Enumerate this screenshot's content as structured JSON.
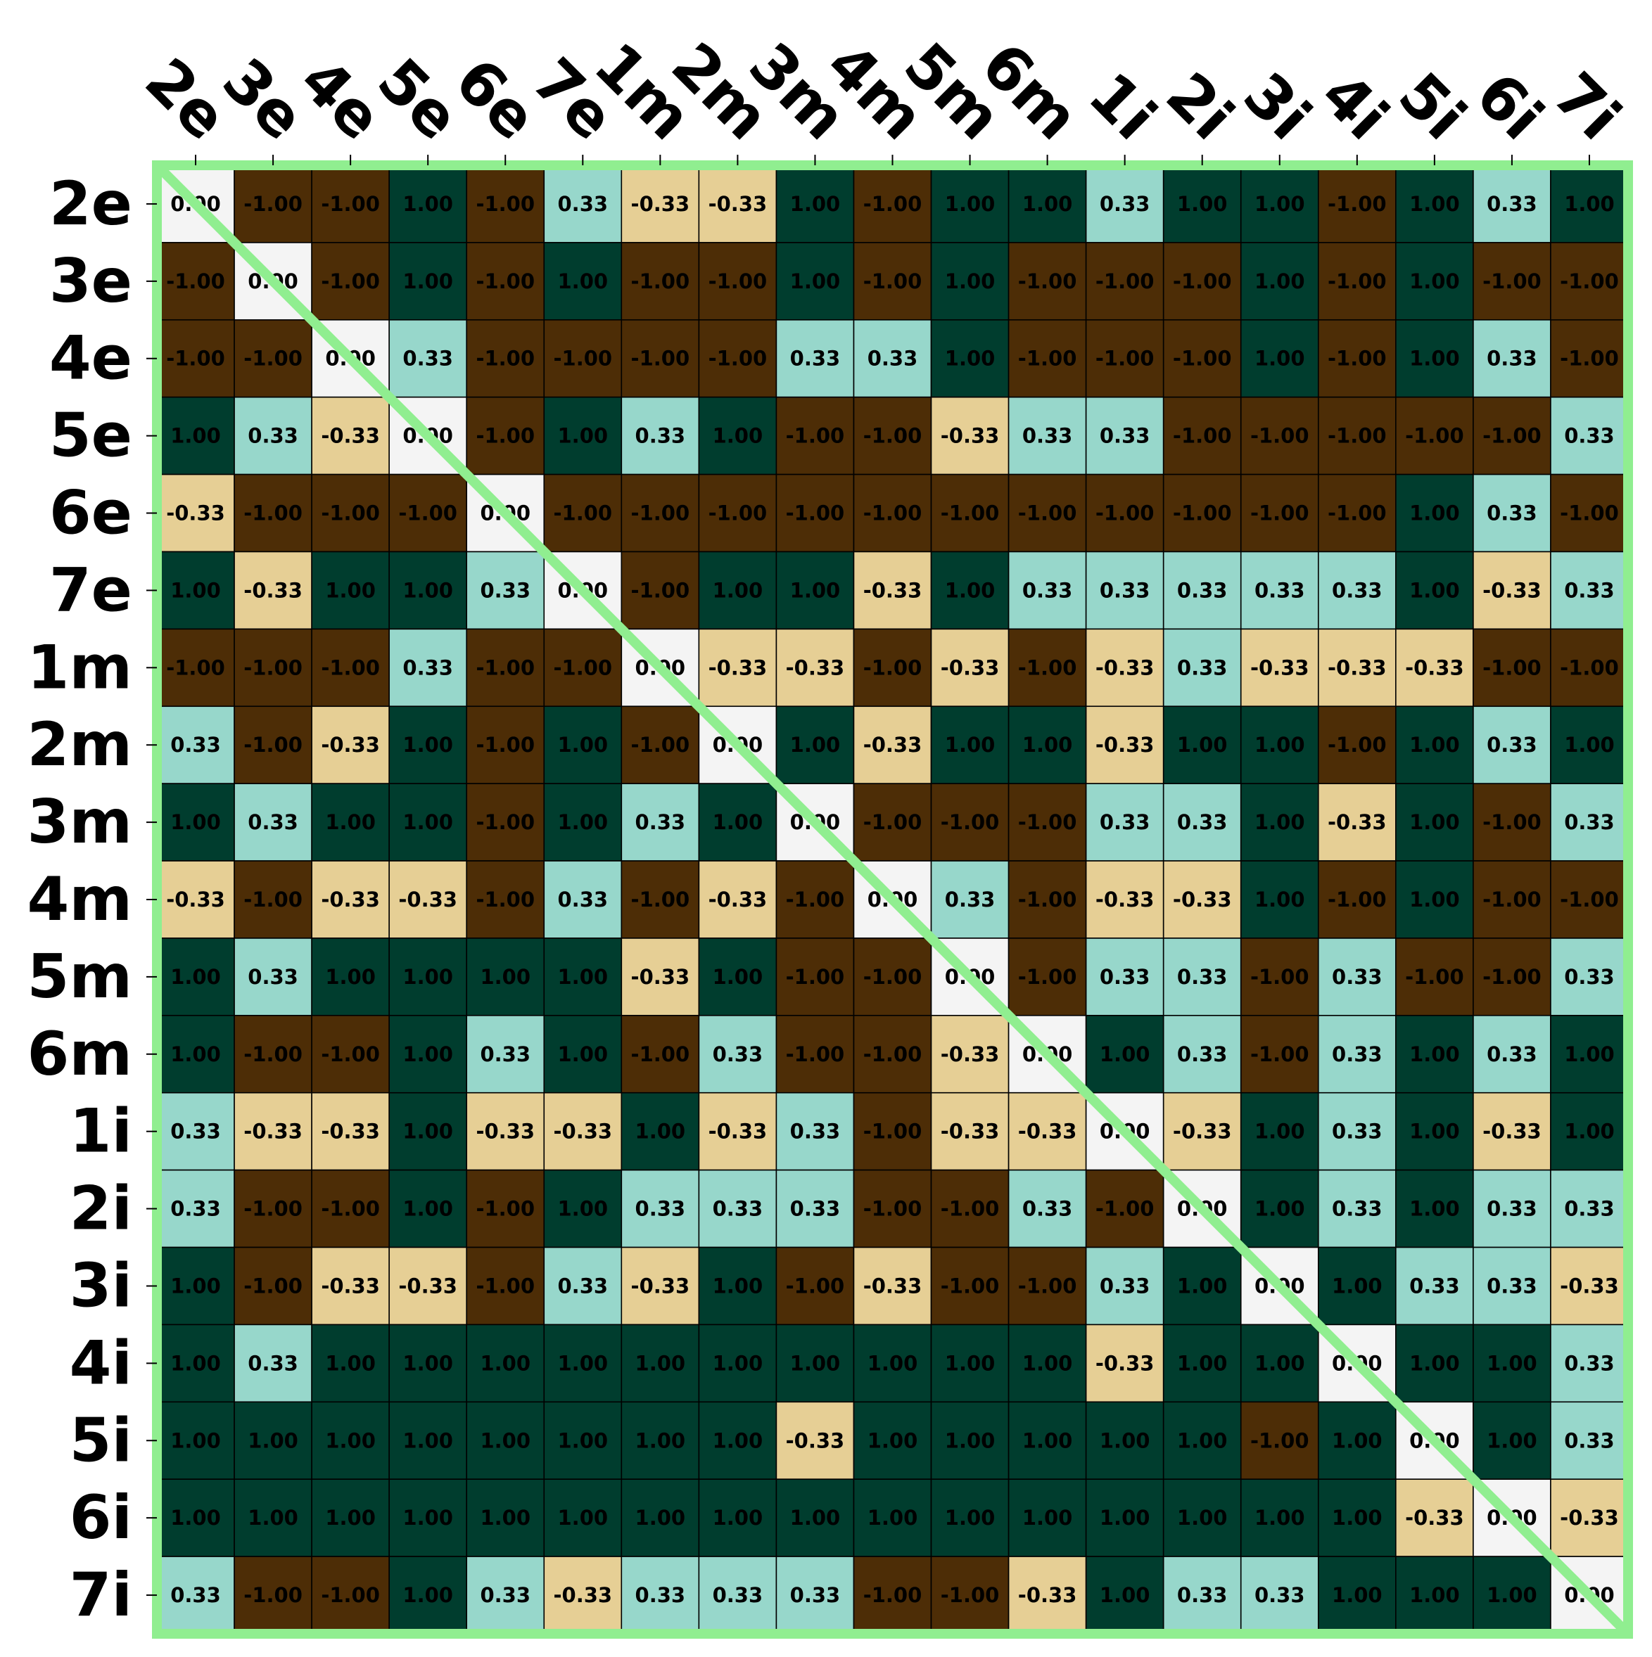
{
  "chart_data": {
    "type": "heatmap",
    "title": "",
    "xlabel": "",
    "ylabel": "",
    "labels": [
      "2e",
      "3e",
      "4e",
      "5e",
      "6e",
      "7e",
      "1m",
      "2m",
      "3m",
      "4m",
      "5m",
      "6m",
      "1i",
      "2i",
      "3i",
      "4i",
      "5i",
      "6i",
      "7i"
    ],
    "value_format": "0.00",
    "value_to_color": {
      "-1.00": "#4d2d06",
      "-0.33": "#e6cf95",
      "0.00": "#f4f4f4",
      "0.33": "#97d7cb",
      "1.00": "#003d2e"
    },
    "diagonal_line_color": "#90ee90",
    "frame_color": "#90ee90",
    "values": [
      [
        0,
        -1,
        -1,
        1,
        -1,
        0.33,
        -0.33,
        -0.33,
        1,
        -1,
        1,
        1,
        0.33,
        1,
        1,
        -1,
        1,
        0.33,
        1
      ],
      [
        -1,
        0,
        -1,
        1,
        -1,
        1,
        -1,
        -1,
        1,
        -1,
        1,
        -1,
        -1,
        -1,
        1,
        -1,
        1,
        -1,
        -1
      ],
      [
        -1,
        -1,
        0,
        0.33,
        -1,
        -1,
        -1,
        -1,
        0.33,
        0.33,
        1,
        -1,
        -1,
        -1,
        1,
        -1,
        1,
        0.33,
        -1
      ],
      [
        1,
        0.33,
        -0.33,
        0,
        -1,
        1,
        0.33,
        1,
        -1,
        -1,
        -0.33,
        0.33,
        0.33,
        -1,
        -1,
        -1,
        -1,
        -1,
        0.33
      ],
      [
        -0.33,
        -1,
        -1,
        -1,
        0,
        -1,
        -1,
        -1,
        -1,
        -1,
        -1,
        -1,
        -1,
        -1,
        -1,
        -1,
        1,
        0.33,
        -1
      ],
      [
        1,
        -0.33,
        1,
        1,
        0.33,
        0,
        -1,
        1,
        1,
        -0.33,
        1,
        0.33,
        0.33,
        0.33,
        0.33,
        0.33,
        1,
        -0.33,
        0.33
      ],
      [
        -1,
        -1,
        -1,
        0.33,
        -1,
        -1,
        0,
        -0.33,
        -0.33,
        -1,
        -0.33,
        -1,
        -0.33,
        0.33,
        -0.33,
        -0.33,
        -0.33,
        -1,
        -1
      ],
      [
        0.33,
        -1,
        -0.33,
        1,
        -1,
        1,
        -1,
        0,
        1,
        -0.33,
        1,
        1,
        -0.33,
        1,
        1,
        -1,
        1,
        0.33,
        1
      ],
      [
        1,
        0.33,
        1,
        1,
        -1,
        1,
        0.33,
        1,
        0,
        -1,
        -1,
        -1,
        0.33,
        0.33,
        1,
        -0.33,
        1,
        -1,
        0.33
      ],
      [
        -0.33,
        -1,
        -0.33,
        -0.33,
        -1,
        0.33,
        -1,
        -0.33,
        -1,
        0,
        0.33,
        -1,
        -0.33,
        -0.33,
        1,
        -1,
        1,
        -1,
        -1
      ],
      [
        1,
        0.33,
        1,
        1,
        1,
        1,
        -0.33,
        1,
        -1,
        -1,
        0,
        -1,
        0.33,
        0.33,
        -1,
        0.33,
        -1,
        -1,
        0.33
      ],
      [
        1,
        -1,
        -1,
        1,
        0.33,
        1,
        -1,
        0.33,
        -1,
        -1,
        -0.33,
        0,
        1,
        0.33,
        -1,
        0.33,
        1,
        0.33,
        1
      ],
      [
        0.33,
        -0.33,
        -0.33,
        1,
        -0.33,
        -0.33,
        1,
        -0.33,
        0.33,
        -1,
        -0.33,
        -0.33,
        0,
        -0.33,
        1,
        0.33,
        1,
        -0.33,
        1
      ],
      [
        0.33,
        -1,
        -1,
        1,
        -1,
        1,
        0.33,
        0.33,
        0.33,
        -1,
        -1,
        0.33,
        -1,
        0,
        1,
        0.33,
        1,
        0.33,
        0.33
      ],
      [
        1,
        -1,
        -0.33,
        -0.33,
        -1,
        0.33,
        -0.33,
        1,
        -1,
        -0.33,
        -1,
        -1,
        0.33,
        1,
        0,
        1,
        0.33,
        0.33,
        -0.33
      ],
      [
        1,
        0.33,
        1,
        1,
        1,
        1,
        1,
        1,
        1,
        1,
        1,
        1,
        -0.33,
        1,
        1,
        0,
        1,
        1,
        0.33
      ],
      [
        1,
        1,
        1,
        1,
        1,
        1,
        1,
        1,
        -0.33,
        1,
        1,
        1,
        1,
        1,
        -1,
        1,
        0,
        1,
        0.33
      ],
      [
        1,
        1,
        1,
        1,
        1,
        1,
        1,
        1,
        1,
        1,
        1,
        1,
        1,
        1,
        1,
        1,
        -0.33,
        0,
        -0.33
      ],
      [
        0.33,
        -1,
        -1,
        1,
        0.33,
        -0.33,
        0.33,
        0.33,
        0.33,
        -1,
        -1,
        -0.33,
        1,
        0.33,
        0.33,
        1,
        1,
        1,
        0
      ]
    ]
  }
}
